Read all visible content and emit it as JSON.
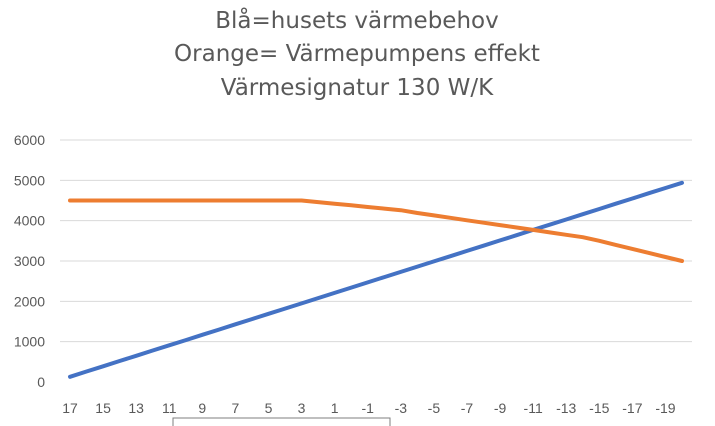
{
  "chart_data": {
    "type": "line",
    "title_lines": [
      "Blå=husets värmebehov",
      "Orange= Värmepumpens effekt",
      "Värmesignatur 130 W/K"
    ],
    "xlabel": "",
    "ylabel": "",
    "x": [
      17,
      16,
      15,
      14,
      13,
      12,
      11,
      10,
      9,
      8,
      7,
      6,
      5,
      4,
      3,
      2,
      1,
      0,
      -1,
      -2,
      -3,
      -4,
      -5,
      -6,
      -7,
      -8,
      -9,
      -10,
      -11,
      -12,
      -13,
      -14,
      -15,
      -16,
      -17,
      -18,
      -19,
      -20
    ],
    "x_tick_labels": [
      "17",
      "15",
      "13",
      "11",
      "9",
      "7",
      "5",
      "3",
      "1",
      "-1",
      "-3",
      "-5",
      "-7",
      "-9",
      "-11",
      "-13",
      "-15",
      "-17",
      "-19"
    ],
    "ylim": [
      0,
      6000
    ],
    "y_ticks": [
      0,
      1000,
      2000,
      3000,
      4000,
      5000,
      6000
    ],
    "grid": "horizontal",
    "series": [
      {
        "color": "#4472c4",
        "values": [
          130,
          260,
          390,
          520,
          650,
          780,
          910,
          1040,
          1170,
          1300,
          1430,
          1560,
          1690,
          1820,
          1950,
          2080,
          2210,
          2340,
          2470,
          2600,
          2730,
          2860,
          2990,
          3120,
          3250,
          3380,
          3510,
          3640,
          3770,
          3900,
          4030,
          4160,
          4290,
          4420,
          4550,
          4680,
          4810,
          4940
        ]
      },
      {
        "color": "#ed7d31",
        "values": [
          4500,
          4500,
          4500,
          4500,
          4500,
          4500,
          4500,
          4500,
          4500,
          4500,
          4500,
          4500,
          4500,
          4500,
          4500,
          4460,
          4420,
          4380,
          4340,
          4300,
          4260,
          4190,
          4130,
          4070,
          4010,
          3950,
          3890,
          3830,
          3770,
          3710,
          3650,
          3590,
          3500,
          3400,
          3300,
          3200,
          3100,
          3000
        ]
      }
    ]
  }
}
